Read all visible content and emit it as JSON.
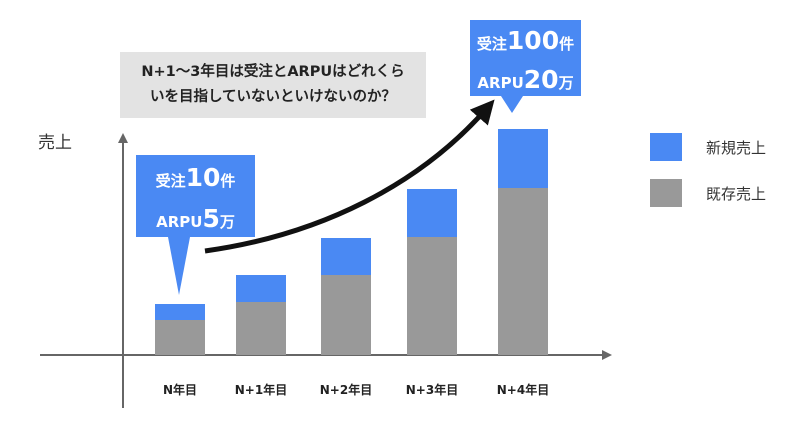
{
  "chart_data": {
    "type": "bar",
    "stacked": true,
    "ylabel": "売上",
    "categories": [
      "N年目",
      "N+1年目",
      "N+2年目",
      "N+3年目",
      "N+4年目"
    ],
    "series": [
      {
        "name": "既存売上",
        "color": "#999999",
        "values": [
          35,
          53,
          80,
          118,
          167
        ]
      },
      {
        "name": "新規売上",
        "color": "#4a89f3",
        "values": [
          16,
          27,
          37,
          48,
          59
        ]
      }
    ],
    "ylim": [
      0,
      240
    ],
    "grid": false,
    "legend_position": "right",
    "annotations": {
      "question_line1": "N+1〜3年目は受注とARPUはどれくら",
      "question_line2": "いを目指していないといけないのか？",
      "callout_start": {
        "line1_prefix": "受注",
        "line1_value": "10",
        "line1_unit": "件",
        "line2_prefix": "ARPU",
        "line2_value": "5",
        "line2_unit": "万"
      },
      "callout_end": {
        "line1_prefix": "受注",
        "line1_value": "100",
        "line1_unit": "件",
        "line2_prefix": "ARPU",
        "line2_value": "20",
        "line2_unit": "万"
      },
      "growth_arrow": "arrow-icon"
    }
  }
}
